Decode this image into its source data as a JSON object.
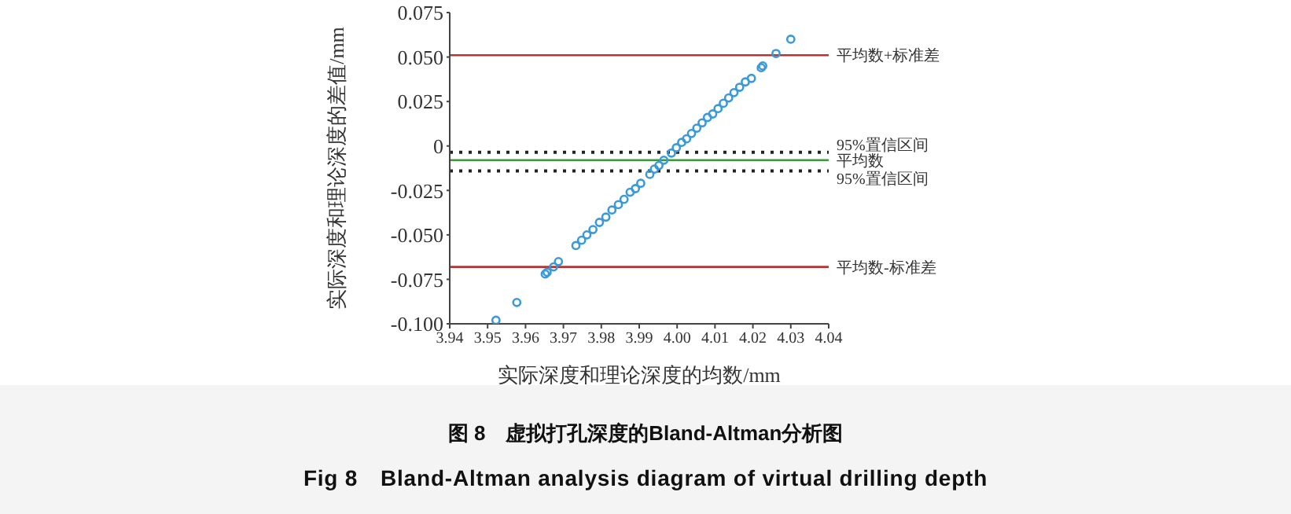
{
  "chart_data": {
    "type": "scatter",
    "xlabel": "实际深度和理论深度的均数/mm",
    "ylabel": "实际深度和理论深度的差值/mm",
    "annotations": [
      "图 8　虚拟打孔深度的Bland-Altman分析图",
      "Fig 8　Bland-Altman analysis diagram of virtual drilling depth"
    ],
    "x": [
      3.9522,
      3.9577,
      3.9652,
      3.9657,
      3.9674,
      3.9687,
      3.9733,
      3.9748,
      3.9762,
      3.9778,
      3.9795,
      3.9812,
      3.9828,
      3.9845,
      3.986,
      3.9876,
      3.989,
      3.9904,
      3.9928,
      3.994,
      3.9952,
      3.9965,
      3.9985,
      3.9998,
      4.0012,
      4.0025,
      4.0038,
      4.0052,
      4.0066,
      4.008,
      4.0094,
      4.0108,
      4.0122,
      4.0136,
      4.015,
      4.0165,
      4.018,
      4.0196,
      4.0222,
      4.0226,
      4.0261,
      4.03
    ],
    "series": [
      {
        "color": "#3a9ad9",
        "values": [
          -0.098,
          -0.088,
          -0.072,
          -0.071,
          -0.068,
          -0.065,
          -0.056,
          -0.053,
          -0.05,
          -0.047,
          -0.043,
          -0.04,
          -0.036,
          -0.033,
          -0.03,
          -0.026,
          -0.024,
          -0.021,
          -0.016,
          -0.013,
          -0.011,
          -0.008,
          -0.004,
          -0.001,
          0.002,
          0.004,
          0.007,
          0.01,
          0.013,
          0.016,
          0.018,
          0.021,
          0.024,
          0.027,
          0.03,
          0.033,
          0.036,
          0.038,
          0.044,
          0.045,
          0.052,
          0.06
        ]
      }
    ],
    "xlim": [
      3.94,
      4.04
    ],
    "xticks": [
      3.94,
      3.95,
      3.96,
      3.97,
      3.98,
      3.99,
      {
        "value": 4.0,
        "label": "4.00"
      },
      4.01,
      4.02,
      4.03,
      4.04
    ],
    "ylim": [
      -0.1,
      0.075
    ],
    "yticks": [
      {
        "value": -0.1,
        "label": "-0.100"
      },
      -0.075,
      {
        "value": -0.05,
        "label": "-0.050"
      },
      -0.025,
      0,
      0.025,
      {
        "value": 0.05,
        "label": "0.050"
      },
      0.075
    ],
    "ref_lines": [
      {
        "axis": "y",
        "value": 0.051,
        "label": "平均数+标准差",
        "color": "#b83232",
        "line_style": "solid"
      },
      {
        "axis": "y",
        "value": -0.0035,
        "label": "95%置信区间",
        "color": "#222222",
        "line_style": "dotted"
      },
      {
        "axis": "y",
        "value": -0.008,
        "label": "平均数",
        "color": "#3a9a3a",
        "line_style": "solid"
      },
      {
        "axis": "y",
        "value": -0.014,
        "label": "95%置信区间",
        "color": "#222222",
        "line_style": "dotted"
      },
      {
        "axis": "y",
        "value": -0.068,
        "label": "平均数-标准差",
        "color": "#b83232",
        "line_style": "solid"
      }
    ],
    "marker": "circle",
    "grid": false,
    "legend": false
  }
}
